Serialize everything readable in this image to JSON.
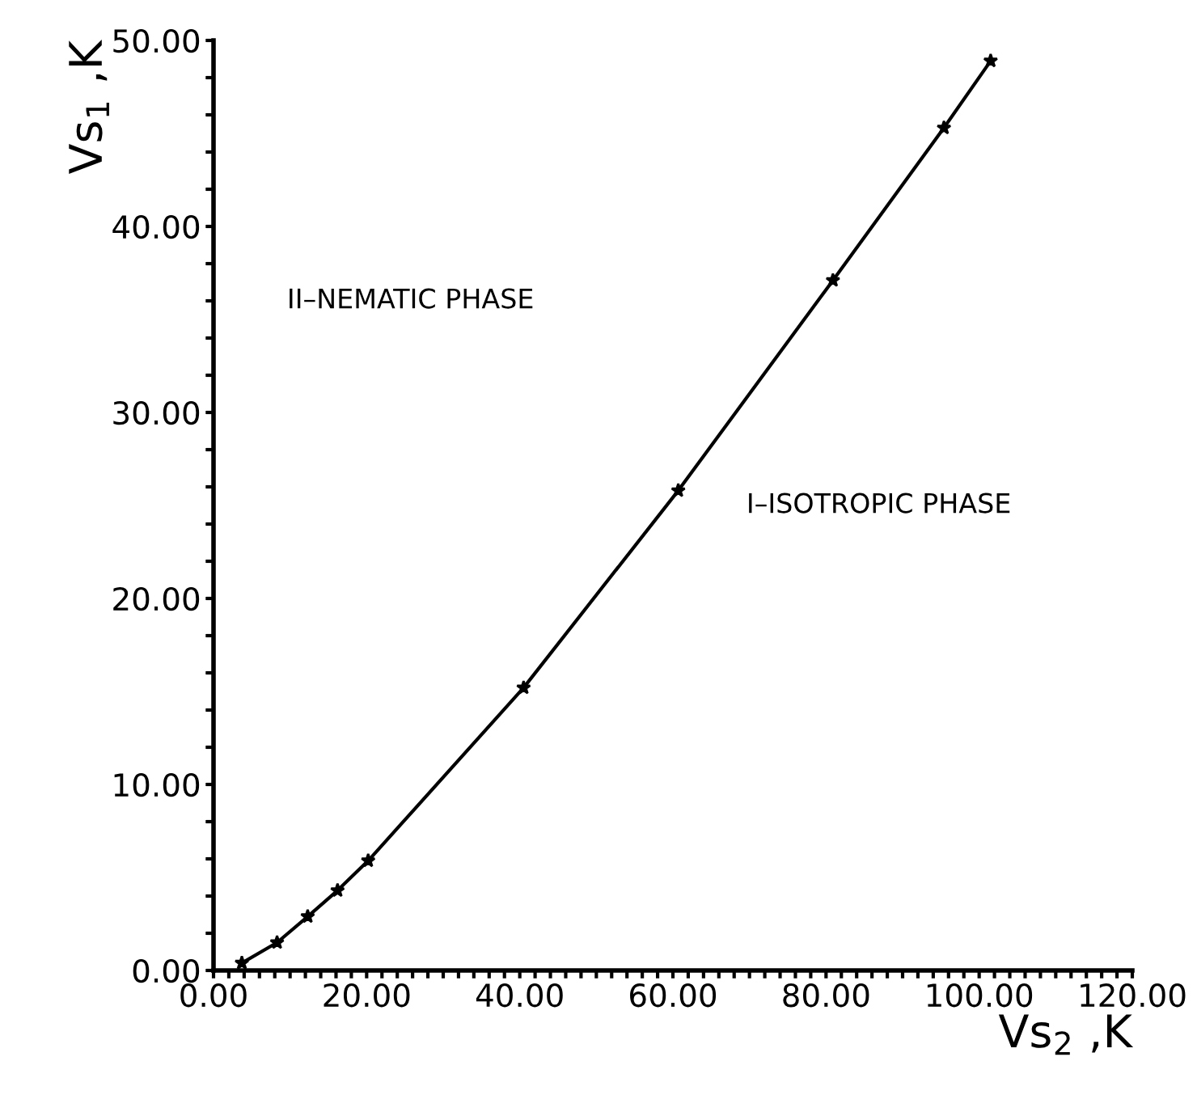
{
  "chart_data": {
    "type": "line",
    "xlabel": "Vs$_{2}$ ,K",
    "ylabel": "Vs$_{1}$ ,K",
    "x": [
      3.7,
      8.3,
      12.3,
      16.2,
      20.2,
      40.5,
      60.7,
      80.9,
      95.4,
      101.5
    ],
    "series": [
      {
        "color": "#000000",
        "values": [
          0.4,
          1.5,
          2.9,
          4.3,
          5.9,
          15.2,
          25.8,
          37.1,
          45.3,
          48.9
        ]
      }
    ],
    "marker": "star",
    "line_style": "solid",
    "grid": false,
    "legend": false,
    "xlim": [
      0,
      120
    ],
    "ylim": [
      0,
      50
    ],
    "xticks": [
      {
        "value": 0,
        "label": "0.00"
      },
      {
        "value": 2,
        "label": null
      },
      {
        "value": 4,
        "label": null
      },
      {
        "value": 6,
        "label": null
      },
      {
        "value": 8,
        "label": null
      },
      {
        "value": 10,
        "label": null
      },
      {
        "value": 12,
        "label": null
      },
      {
        "value": 14,
        "label": null
      },
      {
        "value": 16,
        "label": null
      },
      {
        "value": 18,
        "label": null
      },
      {
        "value": 20,
        "label": "20.00"
      },
      {
        "value": 22,
        "label": null
      },
      {
        "value": 24,
        "label": null
      },
      {
        "value": 26,
        "label": null
      },
      {
        "value": 28,
        "label": null
      },
      {
        "value": 30,
        "label": null
      },
      {
        "value": 32,
        "label": null
      },
      {
        "value": 34,
        "label": null
      },
      {
        "value": 36,
        "label": null
      },
      {
        "value": 38,
        "label": null
      },
      {
        "value": 40,
        "label": "40.00"
      },
      {
        "value": 42,
        "label": null
      },
      {
        "value": 44,
        "label": null
      },
      {
        "value": 46,
        "label": null
      },
      {
        "value": 48,
        "label": null
      },
      {
        "value": 50,
        "label": null
      },
      {
        "value": 52,
        "label": null
      },
      {
        "value": 54,
        "label": null
      },
      {
        "value": 56,
        "label": null
      },
      {
        "value": 58,
        "label": null
      },
      {
        "value": 60,
        "label": "60.00"
      },
      {
        "value": 62,
        "label": null
      },
      {
        "value": 64,
        "label": null
      },
      {
        "value": 66,
        "label": null
      },
      {
        "value": 68,
        "label": null
      },
      {
        "value": 70,
        "label": null
      },
      {
        "value": 72,
        "label": null
      },
      {
        "value": 74,
        "label": null
      },
      {
        "value": 76,
        "label": null
      },
      {
        "value": 78,
        "label": null
      },
      {
        "value": 80,
        "label": "80.00"
      },
      {
        "value": 82,
        "label": null
      },
      {
        "value": 84,
        "label": null
      },
      {
        "value": 86,
        "label": null
      },
      {
        "value": 88,
        "label": null
      },
      {
        "value": 90,
        "label": null
      },
      {
        "value": 92,
        "label": null
      },
      {
        "value": 94,
        "label": null
      },
      {
        "value": 96,
        "label": null
      },
      {
        "value": 98,
        "label": null
      },
      {
        "value": 100,
        "label": "100.00"
      },
      {
        "value": 102,
        "label": null
      },
      {
        "value": 104,
        "label": null
      },
      {
        "value": 106,
        "label": null
      },
      {
        "value": 108,
        "label": null
      },
      {
        "value": 110,
        "label": null
      },
      {
        "value": 112,
        "label": null
      },
      {
        "value": 114,
        "label": null
      },
      {
        "value": 116,
        "label": null
      },
      {
        "value": 118,
        "label": null
      },
      {
        "value": 120,
        "label": "120.00"
      }
    ],
    "yticks": [
      {
        "value": 0,
        "label": "0.00"
      },
      {
        "value": 2,
        "label": null
      },
      {
        "value": 4,
        "label": null
      },
      {
        "value": 6,
        "label": null
      },
      {
        "value": 8,
        "label": null
      },
      {
        "value": 10,
        "label": "10.00"
      },
      {
        "value": 12,
        "label": null
      },
      {
        "value": 14,
        "label": null
      },
      {
        "value": 16,
        "label": null
      },
      {
        "value": 18,
        "label": null
      },
      {
        "value": 20,
        "label": "20.00"
      },
      {
        "value": 22,
        "label": null
      },
      {
        "value": 24,
        "label": null
      },
      {
        "value": 26,
        "label": null
      },
      {
        "value": 28,
        "label": null
      },
      {
        "value": 30,
        "label": "30.00"
      },
      {
        "value": 32,
        "label": null
      },
      {
        "value": 34,
        "label": null
      },
      {
        "value": 36,
        "label": null
      },
      {
        "value": 38,
        "label": null
      },
      {
        "value": 40,
        "label": "40.00"
      },
      {
        "value": 42,
        "label": null
      },
      {
        "value": 44,
        "label": null
      },
      {
        "value": 46,
        "label": null
      },
      {
        "value": 48,
        "label": null
      },
      {
        "value": 50,
        "label": "50.00"
      }
    ],
    "annotations": [
      "II–NEMATIC PHASE",
      "I–ISOTROPIC PHASE"
    ]
  }
}
